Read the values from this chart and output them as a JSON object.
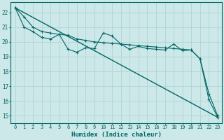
{
  "xlabel": "Humidex (Indice chaleur)",
  "ylabel": "",
  "background_color": "#cce8e8",
  "grid_color": "#b0d4d4",
  "line_color": "#006666",
  "xlim": [
    -0.5,
    23.5
  ],
  "ylim": [
    14.5,
    22.7
  ],
  "yticks": [
    15,
    16,
    17,
    18,
    19,
    20,
    21,
    22
  ],
  "xticks": [
    0,
    1,
    2,
    3,
    4,
    5,
    6,
    7,
    8,
    9,
    10,
    11,
    12,
    13,
    14,
    15,
    16,
    17,
    18,
    19,
    20,
    21,
    22,
    23
  ],
  "series_straight": [
    [
      0,
      22.3
    ],
    [
      23,
      14.9
    ]
  ],
  "series_smooth": [
    22.3,
    21.7,
    21.0,
    20.7,
    20.6,
    20.5,
    20.45,
    20.2,
    20.1,
    20.0,
    19.95,
    19.9,
    19.85,
    19.8,
    19.75,
    19.7,
    19.65,
    19.6,
    19.55,
    19.5,
    19.45,
    18.85,
    16.5,
    15.0
  ],
  "series_wiggly": [
    22.3,
    21.0,
    20.7,
    20.3,
    20.2,
    20.5,
    19.5,
    19.3,
    19.6,
    19.55,
    20.6,
    20.4,
    19.85,
    19.5,
    19.7,
    19.55,
    19.5,
    19.45,
    19.85,
    19.4,
    19.45,
    18.85,
    16.1,
    14.9
  ]
}
